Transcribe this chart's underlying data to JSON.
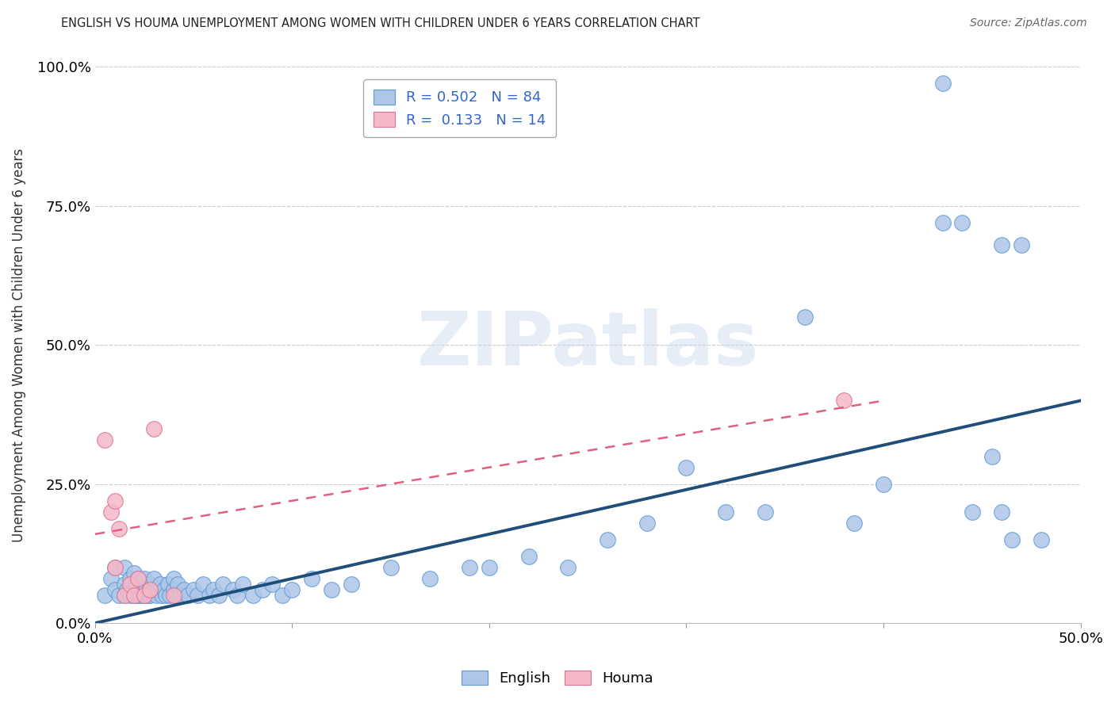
{
  "title": "ENGLISH VS HOUMA UNEMPLOYMENT AMONG WOMEN WITH CHILDREN UNDER 6 YEARS CORRELATION CHART",
  "source": "Source: ZipAtlas.com",
  "ylabel": "Unemployment Among Women with Children Under 6 years",
  "xlim": [
    0,
    0.5
  ],
  "ylim": [
    0,
    1.0
  ],
  "xticks": [
    0.0,
    0.1,
    0.2,
    0.3,
    0.4,
    0.5
  ],
  "yticks": [
    0.0,
    0.25,
    0.5,
    0.75,
    1.0
  ],
  "xticklabels": [
    "0.0%",
    "",
    "",
    "",
    "",
    "50.0%"
  ],
  "yticklabels": [
    "0.0%",
    "25.0%",
    "50.0%",
    "75.0%",
    "100.0%"
  ],
  "english_R": 0.502,
  "english_N": 84,
  "houma_R": 0.133,
  "houma_N": 14,
  "english_color": "#aec6e8",
  "english_edge": "#5b9bd5",
  "houma_color": "#f4b8c8",
  "houma_edge": "#e07090",
  "line_english_color": "#1f4e79",
  "line_houma_color": "#e06080",
  "watermark": "ZIPatlas",
  "background_color": "#ffffff",
  "legend_color": "#3366cc",
  "english_x": [
    0.005,
    0.008,
    0.01,
    0.01,
    0.012,
    0.015,
    0.015,
    0.015,
    0.016,
    0.018,
    0.018,
    0.02,
    0.02,
    0.02,
    0.021,
    0.022,
    0.022,
    0.023,
    0.024,
    0.025,
    0.025,
    0.026,
    0.027,
    0.028,
    0.028,
    0.03,
    0.03,
    0.031,
    0.032,
    0.033,
    0.034,
    0.035,
    0.036,
    0.037,
    0.038,
    0.04,
    0.04,
    0.041,
    0.042,
    0.043,
    0.045,
    0.047,
    0.05,
    0.052,
    0.055,
    0.058,
    0.06,
    0.063,
    0.065,
    0.07,
    0.072,
    0.075,
    0.08,
    0.085,
    0.09,
    0.095,
    0.1,
    0.11,
    0.12,
    0.13,
    0.15,
    0.17,
    0.19,
    0.2,
    0.22,
    0.24,
    0.26,
    0.28,
    0.3,
    0.32,
    0.34,
    0.36,
    0.385,
    0.4,
    0.43,
    0.44,
    0.455,
    0.46,
    0.465,
    0.47,
    0.43,
    0.445,
    0.46,
    0.48
  ],
  "english_y": [
    0.05,
    0.08,
    0.06,
    0.1,
    0.05,
    0.07,
    0.1,
    0.05,
    0.06,
    0.08,
    0.05,
    0.06,
    0.09,
    0.05,
    0.07,
    0.05,
    0.08,
    0.05,
    0.06,
    0.05,
    0.08,
    0.06,
    0.05,
    0.07,
    0.05,
    0.06,
    0.08,
    0.05,
    0.06,
    0.07,
    0.05,
    0.06,
    0.05,
    0.07,
    0.05,
    0.06,
    0.08,
    0.05,
    0.07,
    0.05,
    0.06,
    0.05,
    0.06,
    0.05,
    0.07,
    0.05,
    0.06,
    0.05,
    0.07,
    0.06,
    0.05,
    0.07,
    0.05,
    0.06,
    0.07,
    0.05,
    0.06,
    0.08,
    0.06,
    0.07,
    0.1,
    0.08,
    0.1,
    0.1,
    0.12,
    0.1,
    0.15,
    0.18,
    0.28,
    0.2,
    0.2,
    0.55,
    0.18,
    0.25,
    0.72,
    0.72,
    0.3,
    0.2,
    0.15,
    0.68,
    0.97,
    0.2,
    0.68,
    0.15
  ],
  "houma_x": [
    0.005,
    0.008,
    0.01,
    0.01,
    0.012,
    0.015,
    0.018,
    0.02,
    0.022,
    0.025,
    0.028,
    0.03,
    0.04,
    0.38
  ],
  "houma_y": [
    0.33,
    0.2,
    0.22,
    0.1,
    0.17,
    0.05,
    0.07,
    0.05,
    0.08,
    0.05,
    0.06,
    0.35,
    0.05,
    0.4
  ],
  "eng_line_x0": 0.0,
  "eng_line_y0": 0.0,
  "eng_line_x1": 0.5,
  "eng_line_y1": 0.4,
  "hom_line_x0": 0.0,
  "hom_line_y0": 0.16,
  "hom_line_x1": 0.4,
  "hom_line_y1": 0.4
}
